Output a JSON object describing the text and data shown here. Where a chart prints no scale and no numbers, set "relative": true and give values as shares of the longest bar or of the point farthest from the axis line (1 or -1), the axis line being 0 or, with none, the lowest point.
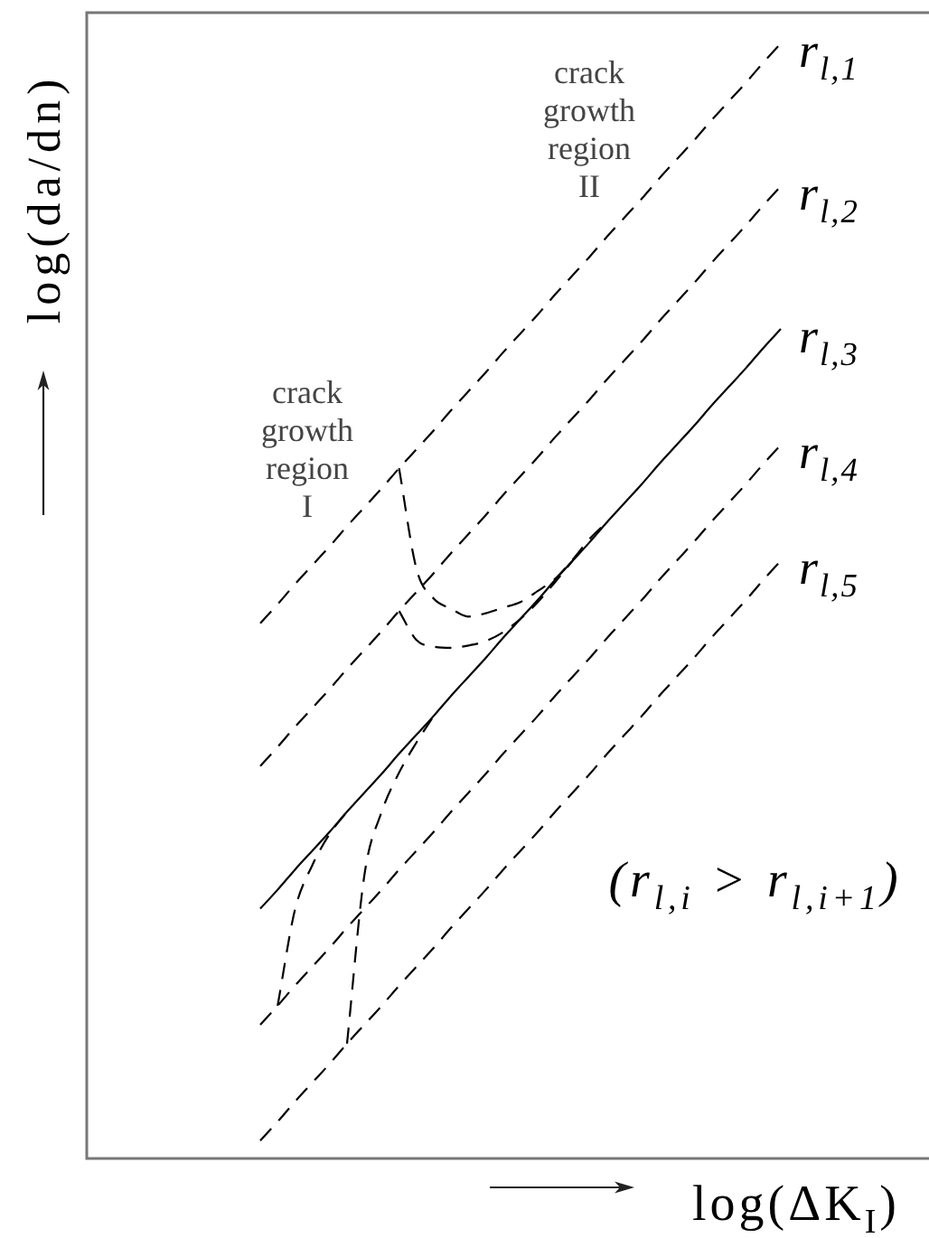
{
  "chart_data": {
    "type": "line",
    "xlabel": "log(ΔK$_{I}$)",
    "ylabel": "log(da/dn)",
    "annotations": [
      "crack growth region II",
      "crack growth region I",
      "(r$_{l,i}$ > r$_{l,i+1}$)"
    ],
    "relative": true,
    "legend": false,
    "grid": false,
    "marker": "none",
    "line_style": "dashed",
    "categories": [
      null,
      null,
      null,
      null,
      null,
      null,
      null,
      null,
      null,
      null,
      null,
      null,
      null,
      null,
      null,
      null,
      null,
      null,
      null,
      null,
      null,
      null,
      null,
      null,
      null,
      null,
      null,
      null,
      null,
      null,
      null,
      null,
      null,
      null,
      null,
      null,
      null,
      null,
      null,
      null,
      null,
      null,
      null,
      null,
      null,
      null,
      null,
      null,
      null
    ],
    "series": [
      {
        "name": "r$_{l,1}$",
        "color": "#000000",
        "values": [
          null,
          null,
          null,
          null,
          null,
          null,
          null,
          null,
          null,
          null,
          0.48,
          0.497,
          0.515,
          0.532,
          0.549,
          0.567,
          0.584,
          0.601,
          0.619,
          0.636,
          0.653,
          0.671,
          0.688,
          0.705,
          0.723,
          0.74,
          0.757,
          0.775,
          0.792,
          0.809,
          0.827,
          0.844,
          0.861,
          0.879,
          0.896,
          0.913,
          0.931,
          0.948,
          0.965,
          0.983,
          1,
          null,
          null,
          null,
          null,
          null,
          null,
          null,
          null
        ]
      },
      {
        "name": "r$_{l,2}$",
        "color": "#000000",
        "values": [
          null,
          null,
          null,
          null,
          null,
          null,
          null,
          null,
          null,
          null,
          0.352,
          0.369,
          0.387,
          0.404,
          0.421,
          0.439,
          0.456,
          0.473,
          0.491,
          0.508,
          0.525,
          0.543,
          0.56,
          0.577,
          0.595,
          0.612,
          0.629,
          0.647,
          0.664,
          0.681,
          0.699,
          0.716,
          0.733,
          0.751,
          0.768,
          0.785,
          0.803,
          0.82,
          0.837,
          0.855,
          0.872,
          null,
          null,
          null,
          null,
          null,
          null,
          null,
          null
        ]
      },
      {
        "name": "r$_{l,3}$",
        "color": "#000000",
        "line_style": "solid",
        "values": [
          null,
          null,
          null,
          null,
          null,
          null,
          null,
          null,
          null,
          null,
          0.224,
          0.241,
          0.259,
          0.276,
          0.293,
          0.311,
          0.328,
          0.345,
          0.363,
          0.38,
          0.397,
          0.415,
          0.432,
          0.449,
          0.467,
          0.484,
          0.501,
          0.519,
          0.536,
          0.553,
          0.571,
          0.588,
          0.605,
          0.623,
          0.64,
          0.657,
          0.675,
          0.692,
          0.709,
          0.727,
          0.744,
          null,
          null,
          null,
          null,
          null,
          null,
          null,
          null
        ]
      },
      {
        "name": "r$_{l,4}$",
        "color": "#000000",
        "values": [
          null,
          null,
          null,
          null,
          null,
          null,
          null,
          null,
          null,
          null,
          0.12,
          0.137,
          0.155,
          0.172,
          0.189,
          0.207,
          0.224,
          0.241,
          0.259,
          0.276,
          0.293,
          0.311,
          0.328,
          0.345,
          0.363,
          0.38,
          0.397,
          0.415,
          0.432,
          0.449,
          0.467,
          0.484,
          0.501,
          0.519,
          0.536,
          0.553,
          0.571,
          0.588,
          0.605,
          0.623,
          0.64,
          null,
          null,
          null,
          null,
          null,
          null,
          null,
          null
        ]
      },
      {
        "name": "r$_{l,5}$",
        "color": "#000000",
        "values": [
          null,
          null,
          null,
          null,
          null,
          null,
          null,
          null,
          null,
          null,
          0.016,
          0.033,
          0.051,
          0.068,
          0.085,
          0.103,
          0.12,
          0.137,
          0.155,
          0.172,
          0.189,
          0.207,
          0.224,
          0.241,
          0.259,
          0.276,
          0.293,
          0.311,
          0.328,
          0.345,
          0.363,
          0.38,
          0.397,
          0.415,
          0.432,
          0.449,
          0.467,
          0.484,
          0.501,
          0.519,
          0.536,
          null,
          null,
          null,
          null,
          null,
          null,
          null,
          null
        ]
      },
      {
        "color": "#000000",
        "values": [
          null,
          null,
          null,
          null,
          null,
          null,
          null,
          null,
          null,
          null,
          null,
          null,
          null,
          null,
          null,
          null,
          null,
          null,
          0.619,
          0.529,
          0.502,
          0.493,
          0.486,
          0.489,
          0.494,
          0.499,
          0.509,
          0.52,
          0.537,
          0.556,
          0.571,
          null,
          null,
          null,
          null,
          null,
          null,
          null,
          null,
          null,
          null,
          null,
          null,
          null,
          null,
          null,
          null,
          null,
          null
        ]
      },
      {
        "color": "#000000",
        "values": [
          null,
          null,
          null,
          null,
          null,
          null,
          null,
          null,
          null,
          null,
          null,
          null,
          null,
          null,
          null,
          null,
          null,
          null,
          0.491,
          0.465,
          0.459,
          0.458,
          0.46,
          0.464,
          0.472,
          0.484,
          0.499,
          0.517,
          0.536,
          null,
          null,
          null,
          null,
          null,
          null,
          null,
          null,
          null,
          null,
          null,
          null,
          null,
          null,
          null,
          null,
          null,
          null,
          null,
          null
        ]
      },
      {
        "color": "#000000",
        "values": [
          null,
          null,
          null,
          null,
          null,
          null,
          null,
          null,
          null,
          null,
          null,
          0.137,
          0.223,
          0.263,
          0.291,
          0.311,
          null,
          null,
          null,
          null,
          null,
          null,
          null,
          null,
          null,
          null,
          null,
          null,
          null,
          null,
          null,
          null,
          null,
          null,
          null,
          null,
          null,
          null,
          null,
          null,
          null,
          null,
          null,
          null,
          null,
          null,
          null,
          null,
          null
        ]
      },
      {
        "color": "#000000",
        "values": [
          null,
          null,
          null,
          null,
          null,
          null,
          null,
          null,
          null,
          null,
          null,
          null,
          null,
          null,
          null,
          0.103,
          0.254,
          0.311,
          0.346,
          0.373,
          0.397,
          null,
          null,
          null,
          null,
          null,
          null,
          null,
          null,
          null,
          null,
          null,
          null,
          null,
          null,
          null,
          null,
          null,
          null,
          null,
          null,
          null,
          null,
          null,
          null,
          null,
          null,
          null,
          null
        ]
      }
    ]
  }
}
